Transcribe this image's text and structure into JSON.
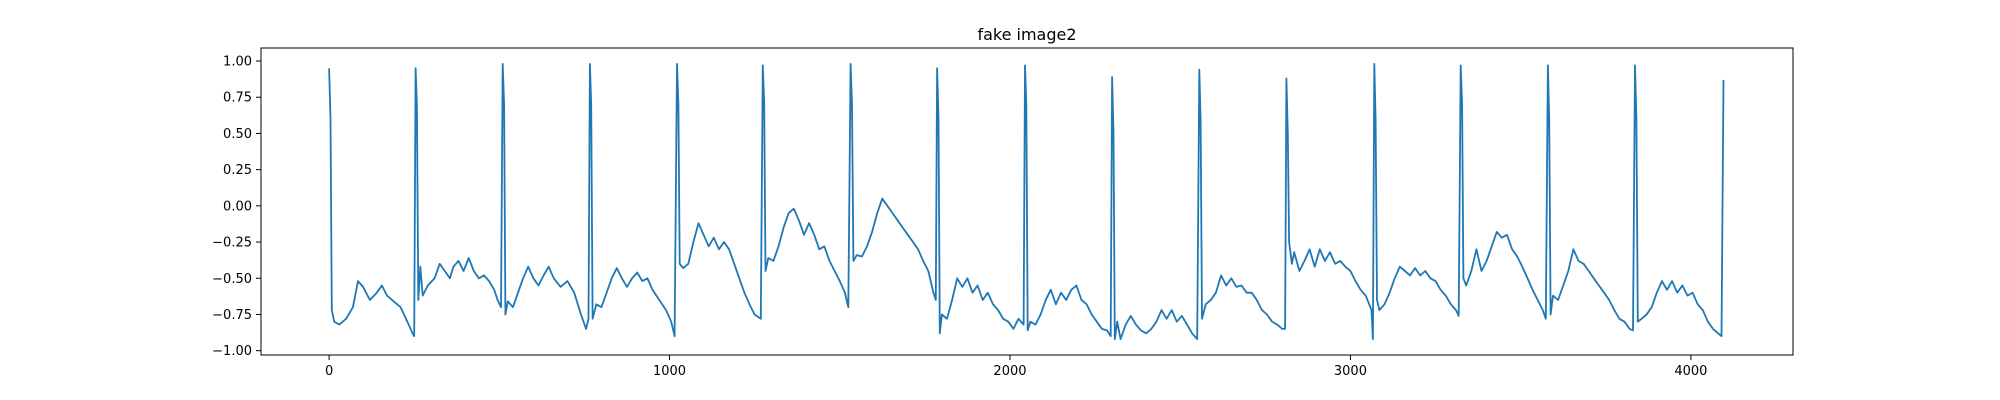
{
  "chart_data": {
    "type": "line",
    "title": "fake image2",
    "xlabel": "",
    "ylabel": "",
    "xlim": [
      -200,
      4300
    ],
    "ylim": [
      -1.03,
      1.09
    ],
    "grid": false,
    "legend": "none",
    "x_ticks": [
      0,
      1000,
      2000,
      3000,
      4000
    ],
    "x_tick_labels": [
      "0",
      "1000",
      "2000",
      "3000",
      "4000"
    ],
    "y_ticks": [
      1.0,
      0.75,
      0.5,
      0.25,
      0.0,
      -0.25,
      -0.5,
      -0.75,
      -1.0
    ],
    "y_tick_labels": [
      "1.00",
      "0.75",
      "0.50",
      "0.25",
      "0.00",
      "−0.25",
      "−0.50",
      "−0.75",
      "−1.00"
    ],
    "series": [
      {
        "color": "#1f77b4",
        "points": [
          [
            0,
            0.95
          ],
          [
            4,
            0.6
          ],
          [
            8,
            -0.72
          ],
          [
            15,
            -0.8
          ],
          [
            30,
            -0.82
          ],
          [
            50,
            -0.78
          ],
          [
            70,
            -0.7
          ],
          [
            85,
            -0.52
          ],
          [
            100,
            -0.56
          ],
          [
            120,
            -0.65
          ],
          [
            140,
            -0.6
          ],
          [
            155,
            -0.55
          ],
          [
            170,
            -0.62
          ],
          [
            190,
            -0.66
          ],
          [
            210,
            -0.7
          ],
          [
            230,
            -0.8
          ],
          [
            245,
            -0.88
          ],
          [
            250,
            -0.9
          ],
          [
            254,
            0.95
          ],
          [
            258,
            0.7
          ],
          [
            262,
            -0.65
          ],
          [
            268,
            -0.42
          ],
          [
            275,
            -0.62
          ],
          [
            290,
            -0.55
          ],
          [
            310,
            -0.5
          ],
          [
            325,
            -0.4
          ],
          [
            340,
            -0.45
          ],
          [
            355,
            -0.5
          ],
          [
            365,
            -0.42
          ],
          [
            380,
            -0.38
          ],
          [
            395,
            -0.45
          ],
          [
            410,
            -0.36
          ],
          [
            425,
            -0.45
          ],
          [
            440,
            -0.5
          ],
          [
            455,
            -0.48
          ],
          [
            470,
            -0.52
          ],
          [
            485,
            -0.58
          ],
          [
            495,
            -0.65
          ],
          [
            505,
            -0.7
          ],
          [
            510,
            0.98
          ],
          [
            514,
            0.7
          ],
          [
            518,
            -0.75
          ],
          [
            525,
            -0.66
          ],
          [
            540,
            -0.7
          ],
          [
            555,
            -0.6
          ],
          [
            570,
            -0.5
          ],
          [
            585,
            -0.42
          ],
          [
            600,
            -0.5
          ],
          [
            615,
            -0.55
          ],
          [
            630,
            -0.48
          ],
          [
            645,
            -0.42
          ],
          [
            660,
            -0.5
          ],
          [
            680,
            -0.56
          ],
          [
            700,
            -0.52
          ],
          [
            720,
            -0.6
          ],
          [
            740,
            -0.75
          ],
          [
            755,
            -0.85
          ],
          [
            762,
            -0.78
          ],
          [
            766,
            0.98
          ],
          [
            770,
            0.7
          ],
          [
            774,
            -0.78
          ],
          [
            785,
            -0.68
          ],
          [
            800,
            -0.7
          ],
          [
            815,
            -0.6
          ],
          [
            830,
            -0.5
          ],
          [
            845,
            -0.43
          ],
          [
            860,
            -0.5
          ],
          [
            875,
            -0.56
          ],
          [
            890,
            -0.5
          ],
          [
            905,
            -0.46
          ],
          [
            920,
            -0.52
          ],
          [
            935,
            -0.5
          ],
          [
            950,
            -0.58
          ],
          [
            970,
            -0.65
          ],
          [
            990,
            -0.72
          ],
          [
            1005,
            -0.8
          ],
          [
            1015,
            -0.9
          ],
          [
            1022,
            0.98
          ],
          [
            1026,
            0.7
          ],
          [
            1030,
            -0.4
          ],
          [
            1040,
            -0.43
          ],
          [
            1055,
            -0.4
          ],
          [
            1070,
            -0.25
          ],
          [
            1085,
            -0.12
          ],
          [
            1100,
            -0.2
          ],
          [
            1115,
            -0.28
          ],
          [
            1130,
            -0.22
          ],
          [
            1145,
            -0.3
          ],
          [
            1160,
            -0.25
          ],
          [
            1175,
            -0.3
          ],
          [
            1190,
            -0.4
          ],
          [
            1205,
            -0.5
          ],
          [
            1220,
            -0.6
          ],
          [
            1235,
            -0.68
          ],
          [
            1250,
            -0.75
          ],
          [
            1268,
            -0.78
          ],
          [
            1274,
            0.97
          ],
          [
            1278,
            0.7
          ],
          [
            1282,
            -0.45
          ],
          [
            1290,
            -0.36
          ],
          [
            1305,
            -0.38
          ],
          [
            1320,
            -0.28
          ],
          [
            1335,
            -0.15
          ],
          [
            1350,
            -0.05
          ],
          [
            1365,
            -0.02
          ],
          [
            1380,
            -0.1
          ],
          [
            1395,
            -0.2
          ],
          [
            1410,
            -0.12
          ],
          [
            1425,
            -0.2
          ],
          [
            1440,
            -0.3
          ],
          [
            1455,
            -0.28
          ],
          [
            1470,
            -0.38
          ],
          [
            1485,
            -0.45
          ],
          [
            1500,
            -0.52
          ],
          [
            1515,
            -0.6
          ],
          [
            1525,
            -0.7
          ],
          [
            1532,
            0.98
          ],
          [
            1536,
            0.7
          ],
          [
            1540,
            -0.38
          ],
          [
            1550,
            -0.34
          ],
          [
            1565,
            -0.35
          ],
          [
            1580,
            -0.28
          ],
          [
            1595,
            -0.18
          ],
          [
            1610,
            -0.05
          ],
          [
            1625,
            0.05
          ],
          [
            1640,
            0.0
          ],
          [
            1655,
            -0.05
          ],
          [
            1670,
            -0.1
          ],
          [
            1685,
            -0.15
          ],
          [
            1700,
            -0.2
          ],
          [
            1715,
            -0.25
          ],
          [
            1730,
            -0.3
          ],
          [
            1745,
            -0.38
          ],
          [
            1760,
            -0.45
          ],
          [
            1775,
            -0.6
          ],
          [
            1782,
            -0.65
          ],
          [
            1786,
            0.95
          ],
          [
            1790,
            0.6
          ],
          [
            1794,
            -0.88
          ],
          [
            1800,
            -0.75
          ],
          [
            1815,
            -0.78
          ],
          [
            1830,
            -0.65
          ],
          [
            1845,
            -0.5
          ],
          [
            1860,
            -0.56
          ],
          [
            1875,
            -0.5
          ],
          [
            1890,
            -0.6
          ],
          [
            1905,
            -0.55
          ],
          [
            1920,
            -0.65
          ],
          [
            1935,
            -0.6
          ],
          [
            1950,
            -0.68
          ],
          [
            1965,
            -0.72
          ],
          [
            1980,
            -0.78
          ],
          [
            1995,
            -0.8
          ],
          [
            2010,
            -0.85
          ],
          [
            2025,
            -0.78
          ],
          [
            2040,
            -0.82
          ],
          [
            2044,
            0.97
          ],
          [
            2048,
            0.7
          ],
          [
            2052,
            -0.86
          ],
          [
            2060,
            -0.8
          ],
          [
            2075,
            -0.82
          ],
          [
            2090,
            -0.75
          ],
          [
            2105,
            -0.65
          ],
          [
            2120,
            -0.58
          ],
          [
            2135,
            -0.68
          ],
          [
            2150,
            -0.6
          ],
          [
            2165,
            -0.65
          ],
          [
            2180,
            -0.58
          ],
          [
            2195,
            -0.55
          ],
          [
            2210,
            -0.65
          ],
          [
            2225,
            -0.68
          ],
          [
            2240,
            -0.75
          ],
          [
            2255,
            -0.8
          ],
          [
            2270,
            -0.85
          ],
          [
            2285,
            -0.86
          ],
          [
            2296,
            -0.9
          ],
          [
            2300,
            0.89
          ],
          [
            2304,
            0.5
          ],
          [
            2308,
            -0.92
          ],
          [
            2315,
            -0.8
          ],
          [
            2325,
            -0.92
          ],
          [
            2340,
            -0.82
          ],
          [
            2355,
            -0.76
          ],
          [
            2370,
            -0.82
          ],
          [
            2385,
            -0.86
          ],
          [
            2400,
            -0.88
          ],
          [
            2415,
            -0.85
          ],
          [
            2430,
            -0.8
          ],
          [
            2445,
            -0.72
          ],
          [
            2460,
            -0.78
          ],
          [
            2475,
            -0.72
          ],
          [
            2490,
            -0.8
          ],
          [
            2505,
            -0.76
          ],
          [
            2520,
            -0.82
          ],
          [
            2535,
            -0.88
          ],
          [
            2550,
            -0.92
          ],
          [
            2556,
            0.94
          ],
          [
            2560,
            0.6
          ],
          [
            2564,
            -0.78
          ],
          [
            2575,
            -0.68
          ],
          [
            2590,
            -0.65
          ],
          [
            2605,
            -0.6
          ],
          [
            2620,
            -0.48
          ],
          [
            2635,
            -0.55
          ],
          [
            2650,
            -0.5
          ],
          [
            2665,
            -0.56
          ],
          [
            2680,
            -0.55
          ],
          [
            2695,
            -0.6
          ],
          [
            2710,
            -0.6
          ],
          [
            2725,
            -0.65
          ],
          [
            2740,
            -0.72
          ],
          [
            2755,
            -0.75
          ],
          [
            2770,
            -0.8
          ],
          [
            2785,
            -0.82
          ],
          [
            2800,
            -0.85
          ],
          [
            2808,
            -0.85
          ],
          [
            2812,
            0.88
          ],
          [
            2816,
            0.5
          ],
          [
            2820,
            -0.25
          ],
          [
            2828,
            -0.4
          ],
          [
            2835,
            -0.32
          ],
          [
            2850,
            -0.45
          ],
          [
            2865,
            -0.38
          ],
          [
            2880,
            -0.3
          ],
          [
            2895,
            -0.42
          ],
          [
            2910,
            -0.3
          ],
          [
            2925,
            -0.38
          ],
          [
            2940,
            -0.32
          ],
          [
            2955,
            -0.4
          ],
          [
            2970,
            -0.38
          ],
          [
            2985,
            -0.42
          ],
          [
            3000,
            -0.45
          ],
          [
            3015,
            -0.52
          ],
          [
            3030,
            -0.58
          ],
          [
            3045,
            -0.62
          ],
          [
            3062,
            -0.72
          ],
          [
            3066,
            -0.92
          ],
          [
            3070,
            0.98
          ],
          [
            3074,
            0.6
          ],
          [
            3078,
            -0.65
          ],
          [
            3085,
            -0.72
          ],
          [
            3100,
            -0.68
          ],
          [
            3115,
            -0.6
          ],
          [
            3130,
            -0.5
          ],
          [
            3145,
            -0.42
          ],
          [
            3160,
            -0.45
          ],
          [
            3175,
            -0.48
          ],
          [
            3190,
            -0.43
          ],
          [
            3205,
            -0.48
          ],
          [
            3220,
            -0.45
          ],
          [
            3235,
            -0.5
          ],
          [
            3250,
            -0.52
          ],
          [
            3265,
            -0.58
          ],
          [
            3280,
            -0.62
          ],
          [
            3295,
            -0.68
          ],
          [
            3310,
            -0.72
          ],
          [
            3318,
            -0.76
          ],
          [
            3324,
            0.97
          ],
          [
            3328,
            0.7
          ],
          [
            3332,
            -0.5
          ],
          [
            3340,
            -0.55
          ],
          [
            3355,
            -0.45
          ],
          [
            3370,
            -0.3
          ],
          [
            3385,
            -0.45
          ],
          [
            3400,
            -0.38
          ],
          [
            3415,
            -0.28
          ],
          [
            3430,
            -0.18
          ],
          [
            3445,
            -0.22
          ],
          [
            3460,
            -0.2
          ],
          [
            3475,
            -0.3
          ],
          [
            3490,
            -0.35
          ],
          [
            3505,
            -0.42
          ],
          [
            3520,
            -0.5
          ],
          [
            3535,
            -0.58
          ],
          [
            3550,
            -0.65
          ],
          [
            3565,
            -0.72
          ],
          [
            3574,
            -0.78
          ],
          [
            3580,
            0.97
          ],
          [
            3584,
            0.6
          ],
          [
            3588,
            -0.75
          ],
          [
            3595,
            -0.62
          ],
          [
            3610,
            -0.65
          ],
          [
            3625,
            -0.55
          ],
          [
            3640,
            -0.45
          ],
          [
            3655,
            -0.3
          ],
          [
            3670,
            -0.38
          ],
          [
            3685,
            -0.4
          ],
          [
            3700,
            -0.45
          ],
          [
            3715,
            -0.5
          ],
          [
            3730,
            -0.55
          ],
          [
            3745,
            -0.6
          ],
          [
            3760,
            -0.65
          ],
          [
            3775,
            -0.72
          ],
          [
            3790,
            -0.78
          ],
          [
            3805,
            -0.8
          ],
          [
            3820,
            -0.85
          ],
          [
            3830,
            -0.86
          ],
          [
            3836,
            0.97
          ],
          [
            3840,
            0.6
          ],
          [
            3844,
            -0.8
          ],
          [
            3855,
            -0.78
          ],
          [
            3870,
            -0.75
          ],
          [
            3885,
            -0.7
          ],
          [
            3900,
            -0.6
          ],
          [
            3915,
            -0.52
          ],
          [
            3930,
            -0.58
          ],
          [
            3945,
            -0.52
          ],
          [
            3960,
            -0.6
          ],
          [
            3975,
            -0.55
          ],
          [
            3990,
            -0.62
          ],
          [
            4005,
            -0.6
          ],
          [
            4020,
            -0.68
          ],
          [
            4035,
            -0.72
          ],
          [
            4050,
            -0.8
          ],
          [
            4065,
            -0.85
          ],
          [
            4080,
            -0.88
          ],
          [
            4090,
            -0.9
          ],
          [
            4096,
            0.87
          ]
        ]
      }
    ]
  }
}
